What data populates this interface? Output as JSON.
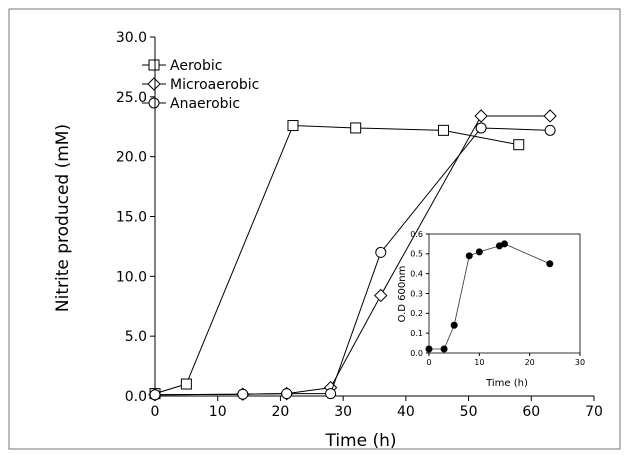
{
  "chart_data": [
    {
      "type": "line",
      "xlabel": "Time (h)",
      "ylabel": "Nitrite produced (mM)",
      "xlim": [
        0,
        70
      ],
      "ylim": [
        0,
        30
      ],
      "x_ticks": [
        "0",
        "10",
        "20",
        "30",
        "40",
        "50",
        "60",
        "70"
      ],
      "y_ticks": [
        "0.0",
        "5.0",
        "10.0",
        "15.0",
        "20.0",
        "25.0",
        "30.0"
      ],
      "grid": false,
      "legend": "top-left",
      "series": [
        {
          "name": "Aerobic",
          "marker": "square",
          "x": [
            0,
            5,
            22,
            32,
            46,
            58
          ],
          "y": [
            0.2,
            1.0,
            22.6,
            22.4,
            22.2,
            21.0
          ]
        },
        {
          "name": "Microaerobic",
          "marker": "diamond",
          "x": [
            0,
            14,
            21,
            28,
            36,
            52,
            63
          ],
          "y": [
            0.1,
            0.15,
            0.2,
            0.7,
            8.4,
            23.4,
            23.4
          ]
        },
        {
          "name": "Anaerobic",
          "marker": "circle",
          "x": [
            0,
            14,
            21,
            28,
            36,
            52,
            63
          ],
          "y": [
            0.1,
            0.15,
            0.2,
            0.2,
            12.0,
            22.4,
            22.2
          ]
        }
      ]
    },
    {
      "type": "line",
      "xlabel": "Time (h)",
      "ylabel": "O.D 600nm",
      "xlim": [
        0,
        30
      ],
      "ylim": [
        0,
        0.6
      ],
      "x_ticks": [
        "0",
        "10",
        "20",
        "30"
      ],
      "y_ticks": [
        "0.0",
        "0.1",
        "0.2",
        "0.3",
        "0.4",
        "0.5",
        "0.6"
      ],
      "grid": false,
      "series": [
        {
          "marker": "filled-circle",
          "x": [
            0,
            3,
            5,
            8,
            10,
            14,
            15,
            24
          ],
          "y": [
            0.02,
            0.02,
            0.14,
            0.49,
            0.51,
            0.54,
            0.55,
            0.45
          ]
        }
      ]
    }
  ]
}
